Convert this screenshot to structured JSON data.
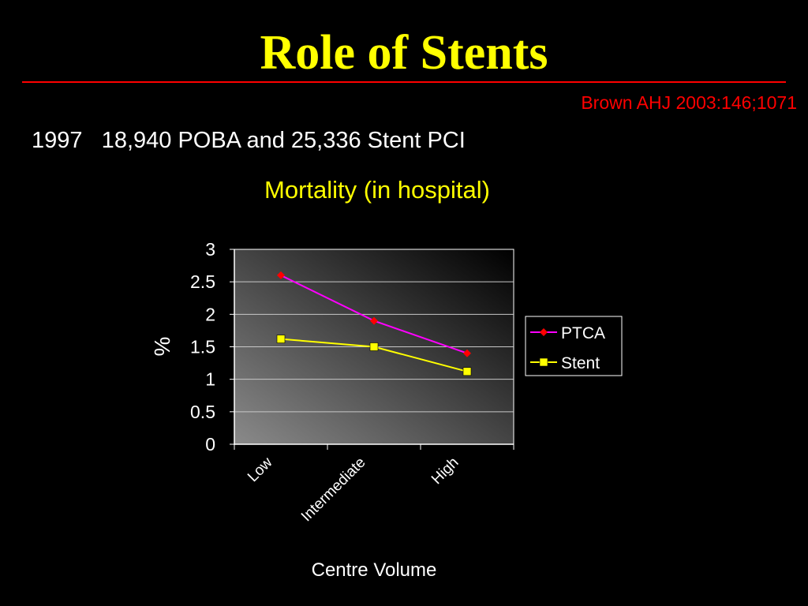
{
  "slide": {
    "title": "Role of Stents",
    "citation": "Brown AHJ 2003:146;1071",
    "subtitle": "1997   18,940 POBA and 25,336 Stent PCI"
  },
  "colors": {
    "background": "#000000",
    "title": "#ffff00",
    "rule": "#ff0000",
    "citation": "#ff0000",
    "chart_title": "#ffff00",
    "text": "#ffffff",
    "plot_fill_light": "#8a8a8a",
    "plot_fill_dark": "#000000"
  },
  "chart_data": {
    "type": "line",
    "title": "Mortality (in hospital)",
    "xlabel": "Centre Volume",
    "ylabel": "%",
    "categories": [
      "Low",
      "Intermediate",
      "High"
    ],
    "ylim": [
      0,
      3
    ],
    "yticks": [
      "0",
      "0.5",
      "1",
      "1.5",
      "2",
      "2.5",
      "3"
    ],
    "grid": true,
    "legend": "right",
    "series": [
      {
        "name": "PTCA",
        "values": [
          2.6,
          1.9,
          1.4
        ],
        "color": "#ff00ff",
        "marker": "diamond",
        "marker_color": "#ff0000"
      },
      {
        "name": "Stent",
        "values": [
          1.62,
          1.5,
          1.12
        ],
        "color": "#ffff00",
        "marker": "square",
        "marker_color": "#ffff00"
      }
    ]
  }
}
